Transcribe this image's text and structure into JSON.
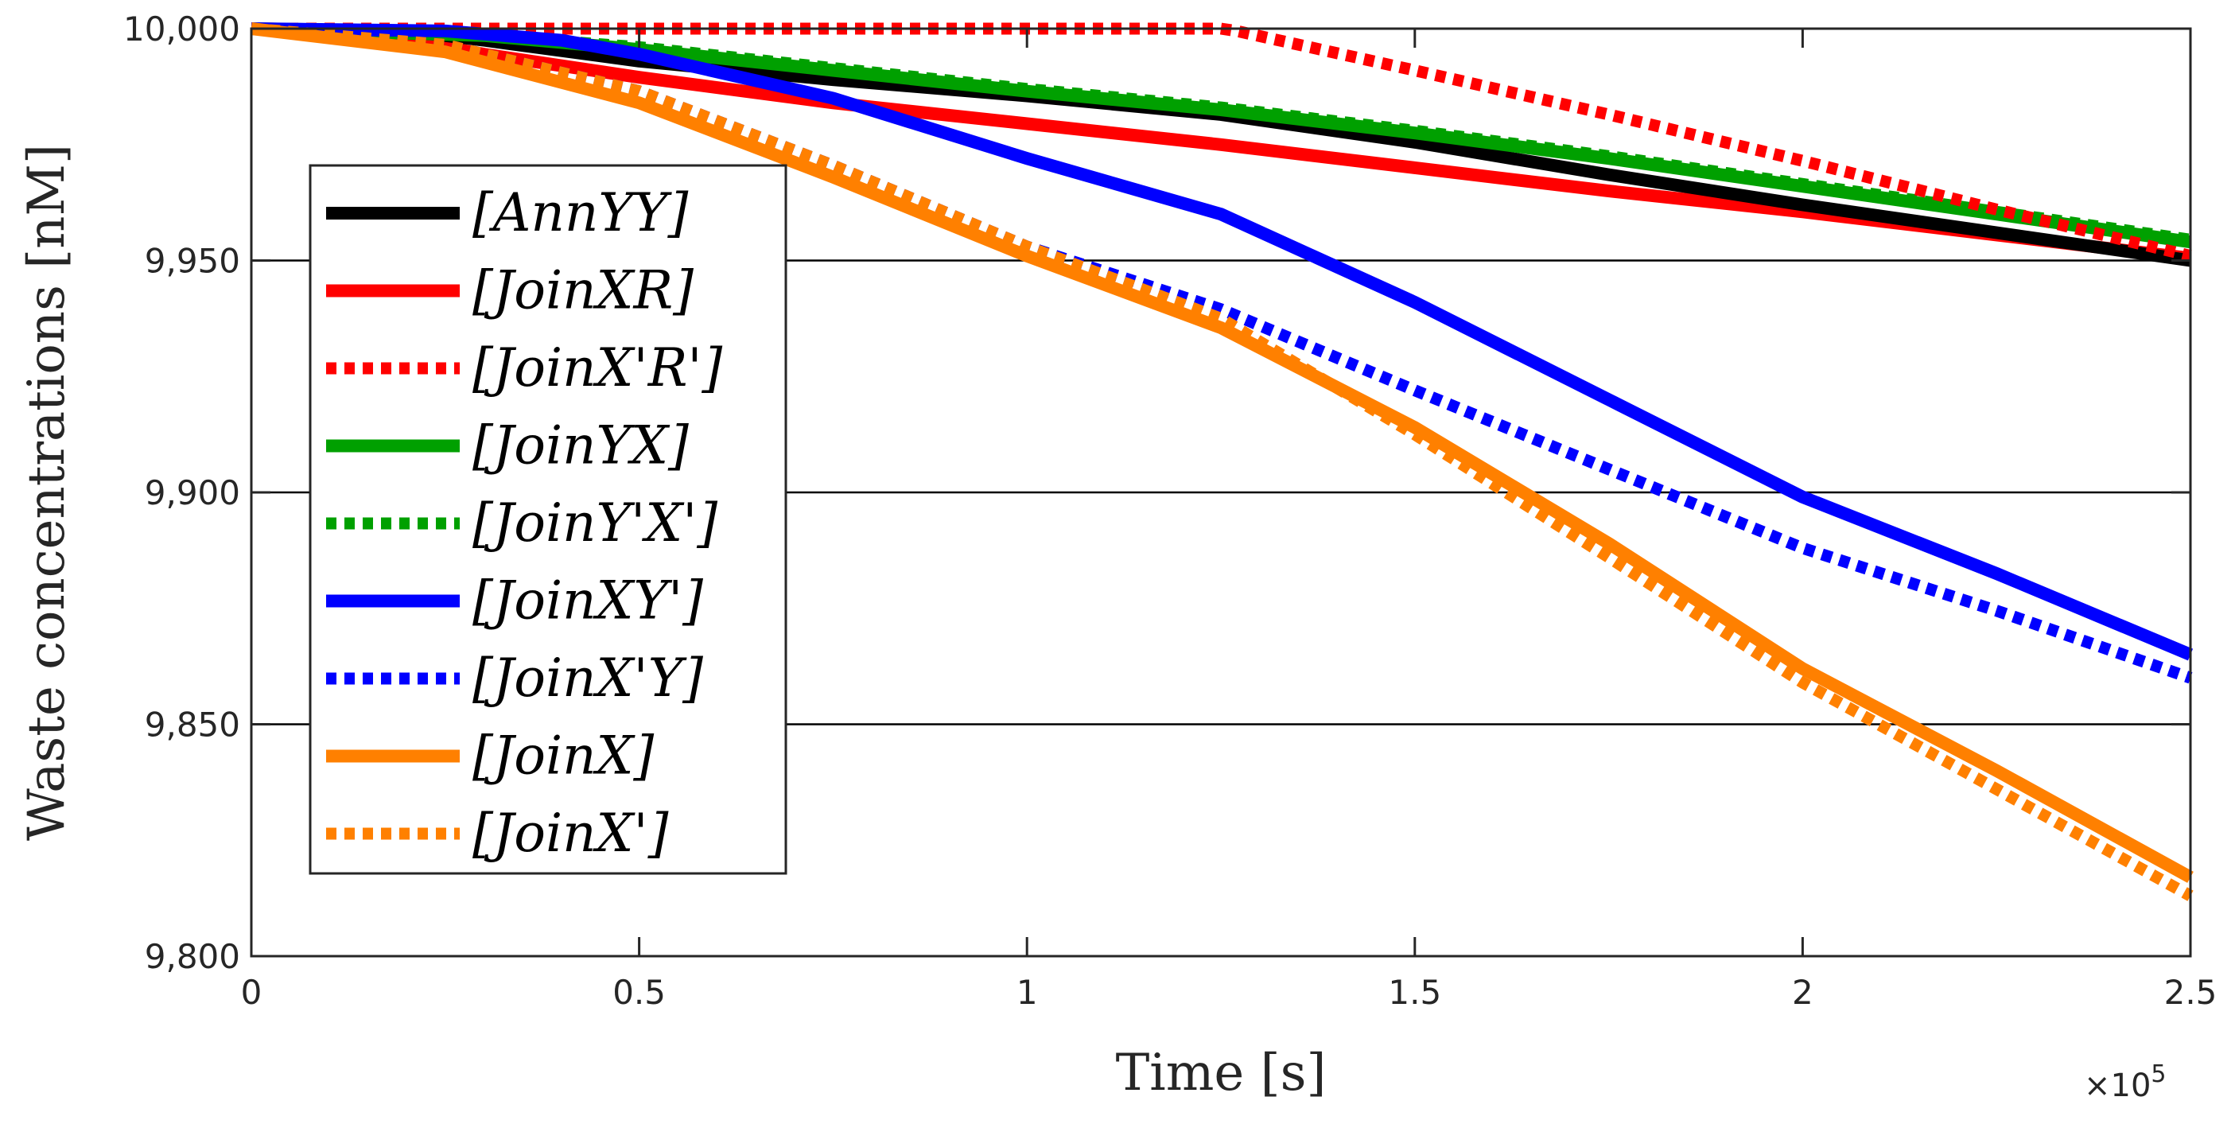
{
  "chart_data": {
    "type": "line",
    "title": "",
    "xlabel": "Time [s]",
    "ylabel": "Waste concentrations [nM]",
    "x_multiplier_label": "×10",
    "x_multiplier_exponent": "5",
    "xlim": [
      0,
      2.5
    ],
    "ylim": [
      9800,
      10000
    ],
    "x_ticks": [
      0,
      0.5,
      1,
      1.5,
      2,
      2.5
    ],
    "x_tick_labels": [
      "0",
      "0.5",
      "1",
      "1.5",
      "2",
      "2.5"
    ],
    "y_ticks": [
      9800,
      9850,
      9900,
      9950,
      10000
    ],
    "y_tick_labels": [
      "9,800",
      "9,850",
      "9,900",
      "9,950",
      "10,000"
    ],
    "grid": "horizontal",
    "legend_position": "left",
    "series": [
      {
        "name": "[AnnYY]",
        "color": "#000000",
        "dash": "solid",
        "x": [
          0,
          0.2,
          0.3,
          0.5,
          0.75,
          1.0,
          1.25,
          1.5,
          1.75,
          2.0,
          2.25,
          2.5
        ],
        "y": [
          10000,
          9999.5,
          9997.5,
          9993,
          9989,
          9985.5,
          9981.5,
          9975.5,
          9968.5,
          9962,
          9956,
          9950
        ]
      },
      {
        "name": "[JoinXR]",
        "color": "#ff0000",
        "dash": "solid",
        "x": [
          0,
          0.2,
          0.3,
          0.5,
          0.75,
          1.0,
          1.25,
          1.5,
          1.75,
          2.0,
          2.25,
          2.5
        ],
        "y": [
          10000,
          9997.5,
          9994.5,
          9989.5,
          9984,
          9979.5,
          9975,
          9970,
          9965,
          9960.5,
          9955.5,
          9950.5
        ]
      },
      {
        "name": "[JoinX'R']",
        "color": "#ff0000",
        "dash": "dotted",
        "x": [
          0,
          0.25,
          0.5,
          0.75,
          1.0,
          1.25,
          1.27,
          1.5,
          1.75,
          2.0,
          2.25,
          2.5
        ],
        "y": [
          10000,
          10000,
          10000,
          10000,
          10000,
          10000,
          9999.5,
          9991,
          9981.5,
          9971.5,
          9961,
          9951
        ]
      },
      {
        "name": "[JoinYX]",
        "color": "#00a000",
        "dash": "solid",
        "x": [
          0,
          0.3,
          0.5,
          0.75,
          1.0,
          1.25,
          1.5,
          1.75,
          2.0,
          2.25,
          2.5
        ],
        "y": [
          10000,
          9998.5,
          9995.5,
          9991,
          9986.5,
          9982.5,
          9977.5,
          9972,
          9966,
          9960,
          9954
        ]
      },
      {
        "name": "[JoinY'X']",
        "color": "#00a000",
        "dash": "dotted",
        "x": [
          0,
          0.3,
          0.5,
          0.75,
          1.0,
          1.25,
          1.5,
          1.75,
          2.0,
          2.25,
          2.5
        ],
        "y": [
          10000,
          9998.5,
          9996,
          9991.5,
          9987,
          9983,
          9978,
          9972.5,
          9966.5,
          9960.5,
          9954.5
        ]
      },
      {
        "name": "[JoinXY']",
        "color": "#0000ff",
        "dash": "solid",
        "x": [
          0,
          0.25,
          0.4,
          0.5,
          0.75,
          1.0,
          1.25,
          1.5,
          1.75,
          2.0,
          2.25,
          2.5
        ],
        "y": [
          10000,
          9999.5,
          9997.5,
          9994.5,
          9985,
          9972,
          9960,
          9941,
          9920,
          9899,
          9882.5,
          9865
        ]
      },
      {
        "name": "[JoinX'Y]",
        "color": "#0000ff",
        "dash": "dotted",
        "x": [
          0,
          0.25,
          0.5,
          0.75,
          1.0,
          1.25,
          1.5,
          1.75,
          2.0,
          2.25,
          2.5
        ],
        "y": [
          10000,
          9996.5,
          9986.5,
          9970.5,
          9953,
          9939.5,
          9922,
          9905,
          9888,
          9874.5,
          9860
        ]
      },
      {
        "name": "[JoinX]",
        "color": "#ff8000",
        "dash": "solid",
        "x": [
          0,
          0.25,
          0.5,
          0.75,
          1.0,
          1.25,
          1.5,
          1.75,
          2.0,
          2.25,
          2.5
        ],
        "y": [
          10000,
          9995,
          9984,
          9968,
          9951,
          9935.5,
          9914,
          9889,
          9862,
          9840,
          9817
        ]
      },
      {
        "name": "[JoinX']",
        "color": "#ff8000",
        "dash": "dotted",
        "x": [
          0,
          0.25,
          0.5,
          0.75,
          1.0,
          1.25,
          1.5,
          1.75,
          2.0,
          2.25,
          2.5
        ],
        "y": [
          10000,
          9996.5,
          9986.5,
          9970.5,
          9953,
          9937.5,
          9912.5,
          9886,
          9859,
          9836,
          9813
        ]
      }
    ]
  }
}
